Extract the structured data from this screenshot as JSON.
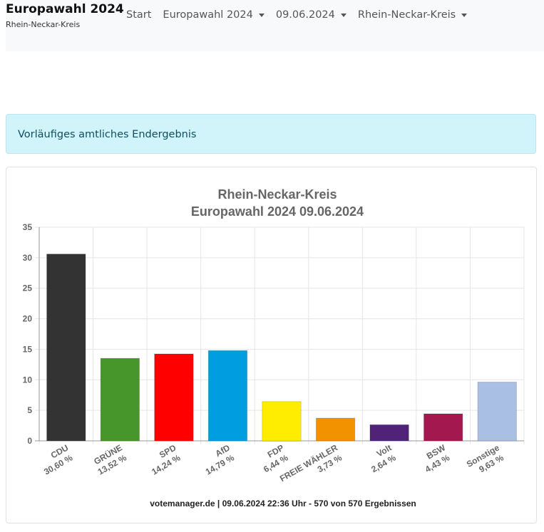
{
  "navbar": {
    "brand_title": "Europawahl 2024",
    "brand_subtitle": "Rhein-Neckar-Kreis",
    "items": [
      {
        "label": "Start",
        "dropdown": false
      },
      {
        "label": "Europawahl 2024",
        "dropdown": true
      },
      {
        "label": "09.06.2024",
        "dropdown": true
      },
      {
        "label": "Rhein-Neckar-Kreis",
        "dropdown": true
      }
    ]
  },
  "alert": {
    "text": "Vorläufiges amtliches Endergebnis"
  },
  "chart_data": {
    "type": "bar",
    "title_lines": [
      "Rhein-Neckar-Kreis",
      "Europawahl 2024 09.06.2024"
    ],
    "categories": [
      "CDU",
      "GRÜNE",
      "SPD",
      "AfD",
      "FDP",
      "FREIE WÄHLER",
      "Volt",
      "BSW",
      "Sonstige"
    ],
    "values": [
      30.6,
      13.52,
      14.24,
      14.79,
      6.44,
      3.73,
      2.64,
      4.43,
      9.63
    ],
    "value_labels": [
      "30,60 %",
      "13,52 %",
      "14,24 %",
      "14,79 %",
      "6,44 %",
      "3,73 %",
      "2,64 %",
      "4,43 %",
      "9,63 %"
    ],
    "colors": [
      "#333333",
      "#46962b",
      "#ff0000",
      "#009ee0",
      "#ffed00",
      "#f39200",
      "#502379",
      "#a3194f",
      "#aabfe4"
    ],
    "yticks": [
      0,
      5,
      10,
      15,
      20,
      25,
      30,
      35
    ],
    "ylim": [
      0,
      35
    ],
    "grid": true,
    "footer": "votemanager.de | 09.06.2024 22:36 Uhr - 570 von 570 Ergebnissen"
  }
}
